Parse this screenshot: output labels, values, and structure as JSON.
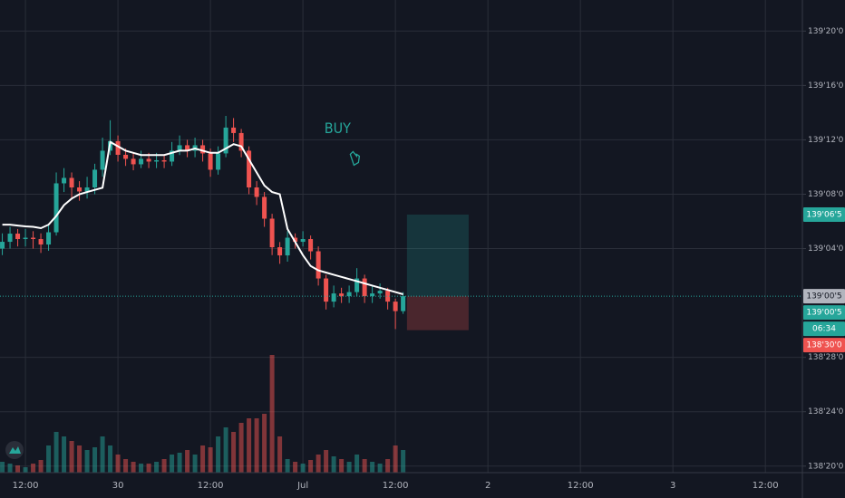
{
  "chart_data": {
    "type": "candlestick",
    "annotation": "BUY",
    "annotation_at": [
      40.5,
      139.4
    ],
    "up_color": "#26a69a",
    "down_color": "#ef5350",
    "ma_color": "#ffffff",
    "grid": true,
    "xlim": [
      -3.3,
      100.8
    ],
    "ylim": [
      138.61,
      139.6964
    ],
    "xticks": [
      {
        "value": 0,
        "label": "12:00"
      },
      {
        "value": 12,
        "label": "30"
      },
      {
        "value": 24,
        "label": "12:00"
      },
      {
        "value": 36,
        "label": "Jul"
      },
      {
        "value": 48,
        "label": "12:00"
      },
      {
        "value": 60,
        "label": "2"
      },
      {
        "value": 72,
        "label": "12:00"
      },
      {
        "value": 84,
        "label": "3"
      },
      {
        "value": 96,
        "label": "12:00"
      }
    ],
    "yticks": [
      {
        "value": 139.625,
        "label": "139'20'0"
      },
      {
        "value": 139.5,
        "label": "139'16'0"
      },
      {
        "value": 139.375,
        "label": "139'12'0"
      },
      {
        "value": 139.25,
        "label": "139'08'0"
      },
      {
        "value": 139.125,
        "label": "139'04'0"
      },
      {
        "value": 138.875,
        "label": "138'28'0"
      },
      {
        "value": 138.75,
        "label": "138'24'0"
      },
      {
        "value": 138.625,
        "label": "138'20'0"
      }
    ],
    "x": [
      -3,
      -2,
      -1,
      0,
      1,
      2,
      3,
      4,
      5,
      6,
      7,
      8,
      9,
      10,
      11,
      12,
      13,
      14,
      15,
      16,
      17,
      18,
      19,
      20,
      21,
      22,
      23,
      24,
      25,
      26,
      27,
      28,
      29,
      30,
      31,
      32,
      33,
      34,
      35,
      36,
      37,
      38,
      39,
      40,
      41,
      42,
      43,
      44,
      45,
      46,
      47,
      48,
      49
    ],
    "open": [
      139.125,
      139.1406,
      139.1594,
      139.1469,
      139.15,
      139.1469,
      139.1344,
      139.1625,
      139.275,
      139.2875,
      139.2656,
      139.2563,
      139.2656,
      139.3063,
      139.35,
      139.3719,
      139.3406,
      139.3313,
      139.3188,
      139.3313,
      139.325,
      139.3281,
      139.325,
      139.35,
      139.3625,
      139.35,
      139.3625,
      139.3438,
      139.3063,
      139.3438,
      139.4031,
      139.3906,
      139.35,
      139.2656,
      139.2438,
      139.1938,
      139.1281,
      139.1094,
      139.15,
      139.1406,
      139.1469,
      139.1188,
      139.0563,
      139.0031,
      139.0219,
      139.0156,
      139.025,
      139.0563,
      139.0156,
      139.0219,
      139.0281,
      139.0031,
      138.9813
    ],
    "high": [
      139.16,
      139.175,
      139.17,
      139.17,
      139.165,
      139.16,
      139.18,
      139.3,
      139.31,
      139.3,
      139.28,
      139.29,
      139.32,
      139.38,
      139.42,
      139.385,
      139.355,
      139.345,
      139.35,
      139.345,
      139.345,
      139.34,
      139.37,
      139.385,
      139.375,
      139.38,
      139.375,
      139.355,
      139.36,
      139.43,
      139.425,
      139.4,
      139.36,
      139.28,
      139.255,
      139.205,
      139.14,
      139.165,
      139.16,
      139.165,
      139.155,
      139.13,
      139.065,
      139.04,
      139.035,
      139.04,
      139.08,
      139.065,
      139.04,
      139.045,
      139.035,
      139.01,
      139.025
    ],
    "low": [
      139.11,
      139.125,
      139.13,
      139.13,
      139.125,
      139.115,
      139.12,
      139.155,
      139.255,
      139.24,
      139.235,
      139.24,
      139.25,
      139.29,
      139.34,
      139.325,
      139.315,
      139.305,
      139.31,
      139.31,
      139.31,
      139.31,
      139.315,
      139.34,
      139.335,
      139.335,
      139.325,
      139.29,
      139.295,
      139.335,
      139.37,
      139.335,
      139.25,
      139.225,
      139.175,
      139.11,
      139.09,
      139.095,
      139.125,
      139.13,
      139.1,
      139.04,
      138.985,
      138.99,
      139.0,
      139.0,
      139.015,
      139.0,
      139.0,
      139.01,
      138.985,
      138.94,
      138.975
    ],
    "close": [
      139.1406,
      139.1594,
      139.1469,
      139.15,
      139.1469,
      139.1344,
      139.1625,
      139.275,
      139.2875,
      139.2656,
      139.2563,
      139.2656,
      139.3063,
      139.35,
      139.3719,
      139.3406,
      139.3313,
      139.3188,
      139.3313,
      139.325,
      139.3281,
      139.325,
      139.35,
      139.3625,
      139.35,
      139.3625,
      139.3438,
      139.3063,
      139.3438,
      139.4031,
      139.3906,
      139.35,
      139.2656,
      139.2438,
      139.1938,
      139.1281,
      139.1094,
      139.15,
      139.1406,
      139.1469,
      139.1188,
      139.0563,
      139.0031,
      139.0219,
      139.0156,
      139.025,
      139.0563,
      139.0156,
      139.0219,
      139.0281,
      139.0031,
      138.9813,
      139.0156
    ],
    "volume": [
      12,
      10,
      8,
      6,
      10,
      14,
      30,
      45,
      40,
      35,
      30,
      25,
      28,
      40,
      30,
      20,
      15,
      12,
      10,
      10,
      12,
      15,
      20,
      22,
      25,
      20,
      30,
      28,
      40,
      50,
      45,
      55,
      60,
      60,
      65,
      130,
      40,
      15,
      12,
      10,
      14,
      20,
      25,
      18,
      15,
      12,
      20,
      15,
      12,
      10,
      15,
      30,
      25
    ],
    "ma": [
      139.18,
      139.18,
      139.178,
      139.176,
      139.175,
      139.172,
      139.18,
      139.2,
      139.225,
      139.24,
      139.25,
      139.255,
      139.26,
      139.265,
      139.37,
      139.36,
      139.35,
      139.345,
      139.34,
      139.34,
      139.34,
      139.34,
      139.345,
      139.35,
      139.35,
      139.355,
      139.35,
      139.345,
      139.345,
      139.355,
      139.365,
      139.36,
      139.33,
      139.3,
      139.27,
      139.255,
      139.25,
      139.17,
      139.14,
      139.11,
      139.085,
      139.075,
      139.07,
      139.065,
      139.06,
      139.055,
      139.05,
      139.045,
      139.04,
      139.035,
      139.03,
      139.025,
      139.02
    ],
    "position": {
      "entry": 139.0156,
      "target": 139.2031,
      "stop": 138.9375,
      "x": [
        49.5,
        57.5
      ]
    },
    "price_labels": [
      {
        "value": 139.2031,
        "label": "139'06'5",
        "color": "#26a69a"
      },
      {
        "value": 139.0156,
        "label": "139'00'5",
        "color": "#b2b5be"
      },
      {
        "value": 139.0156,
        "label": "139'00'5",
        "color": "#26a69a"
      },
      {
        "label": "06:34",
        "color": "#26a69a"
      },
      {
        "value": 138.9375,
        "label": "138'30'0",
        "color": "#ef5350"
      }
    ]
  }
}
